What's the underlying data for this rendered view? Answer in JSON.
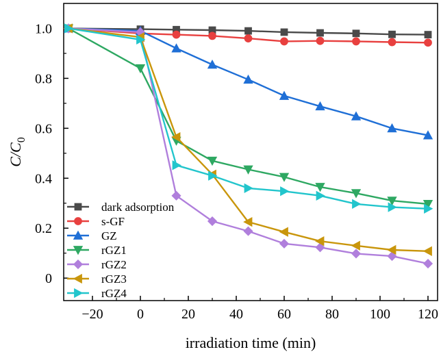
{
  "chart_data": {
    "type": "line",
    "title": "",
    "xlabel": "irradiation time (min)",
    "ylabel": {
      "main": "C/C",
      "sub": "0"
    },
    "xlim": [
      -32,
      124
    ],
    "ylim": [
      -0.09,
      1.1
    ],
    "xticks": [
      -20,
      0,
      20,
      40,
      60,
      80,
      100,
      120
    ],
    "xtick_labels": [
      "−20",
      "0",
      "20",
      "40",
      "60",
      "80",
      "100",
      "120"
    ],
    "yticks": [
      0,
      0.2,
      0.4,
      0.6,
      0.8,
      1.0
    ],
    "ytick_labels": [
      "0",
      "0.2",
      "0.4",
      "0.6",
      "0.8",
      "1.0"
    ],
    "grid": false,
    "legend_position": "bottom-left",
    "x": [
      -30,
      0,
      15,
      30,
      45,
      60,
      75,
      90,
      105,
      120
    ],
    "series": [
      {
        "name": "dark adsorption",
        "color": "#4a4a4a",
        "marker": "square",
        "values": [
          1.0,
          0.997,
          0.995,
          0.993,
          0.99,
          0.985,
          0.982,
          0.98,
          0.976,
          0.975
        ]
      },
      {
        "name": "s-GF",
        "color": "#e8403f",
        "marker": "circle",
        "values": [
          1.0,
          0.98,
          0.975,
          0.97,
          0.96,
          0.948,
          0.95,
          0.948,
          0.945,
          0.943
        ]
      },
      {
        "name": "GZ",
        "color": "#1f6fd6",
        "marker": "triangle-up",
        "values": [
          1.0,
          0.99,
          0.92,
          0.855,
          0.795,
          0.73,
          0.688,
          0.648,
          0.6,
          0.572
        ]
      },
      {
        "name": "rGZ1",
        "color": "#2ea862",
        "marker": "triangle-down",
        "values": [
          1.0,
          0.84,
          0.55,
          0.47,
          0.435,
          0.405,
          0.365,
          0.34,
          0.31,
          0.297
        ]
      },
      {
        "name": "rGZ2",
        "color": "#b07fdc",
        "marker": "diamond",
        "values": [
          1.0,
          0.985,
          0.33,
          0.228,
          0.188,
          0.138,
          0.123,
          0.098,
          0.088,
          0.058
        ]
      },
      {
        "name": "rGZ3",
        "color": "#c9960c",
        "marker": "triangle-left",
        "values": [
          1.0,
          0.965,
          0.565,
          0.415,
          0.225,
          0.185,
          0.148,
          0.13,
          0.113,
          0.108
        ]
      },
      {
        "name": "rGZ4",
        "color": "#22c5cc",
        "marker": "triangle-right",
        "values": [
          1.0,
          0.955,
          0.452,
          0.41,
          0.36,
          0.348,
          0.33,
          0.297,
          0.284,
          0.278
        ]
      }
    ]
  }
}
